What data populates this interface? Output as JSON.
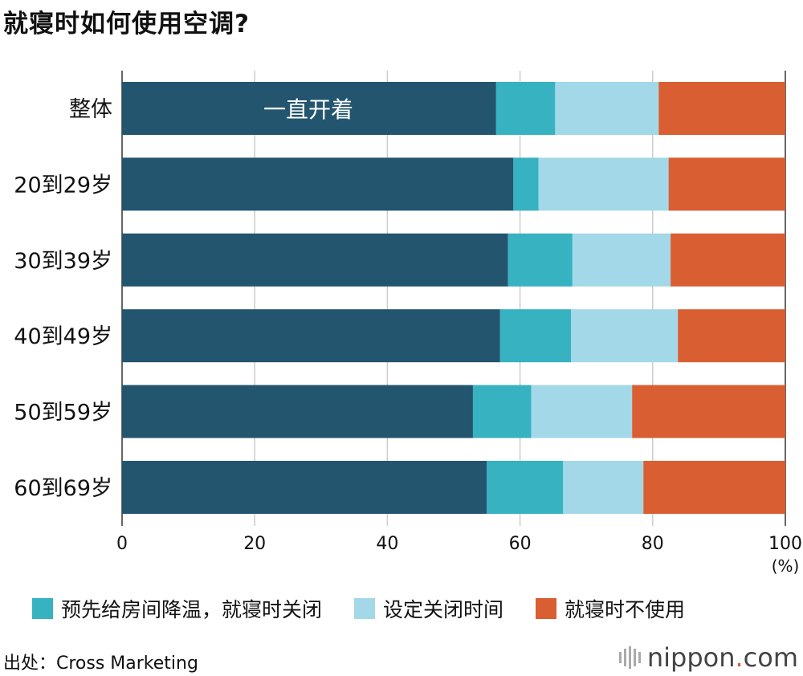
{
  "title": "就寝时如何使用空调?",
  "chart_data": {
    "type": "bar",
    "orientation": "horizontal",
    "stacked": true,
    "title": "就寝时如何使用空调?",
    "categories": [
      "整体",
      "20到29岁",
      "30到39岁",
      "40到49岁",
      "50到59岁",
      "60到69岁"
    ],
    "series": [
      {
        "name": "一直开着",
        "color": "#23556f",
        "values": [
          56.4,
          59.0,
          58.2,
          57.0,
          52.9,
          55.0
        ]
      },
      {
        "name": "预先给房间降温，就寝时关闭",
        "color": "#36b2c0",
        "values": [
          8.9,
          3.8,
          9.7,
          10.7,
          8.8,
          11.5
        ]
      },
      {
        "name": "设定关闭时间",
        "color": "#a3d8e8",
        "values": [
          15.6,
          19.6,
          14.8,
          16.1,
          15.2,
          12.1
        ]
      },
      {
        "name": "就寝时不使用",
        "color": "#d95f33",
        "values": [
          19.1,
          17.6,
          17.3,
          16.2,
          23.1,
          21.4
        ]
      }
    ],
    "xlim": [
      0,
      100
    ],
    "xticks": [
      "0",
      "20",
      "40",
      "60",
      "80",
      "100"
    ],
    "xunit": "(%)",
    "grid": true,
    "inline_label": "一直开着",
    "legend_position": "bottom"
  },
  "legend": [
    "预先给房间降温，就寝时关闭",
    "设定关闭时间",
    "就寝时不使用"
  ],
  "source": "出处：Cross Marketing",
  "logo": {
    "name": "nippon",
    "dot": ".",
    "suffix": "com"
  }
}
